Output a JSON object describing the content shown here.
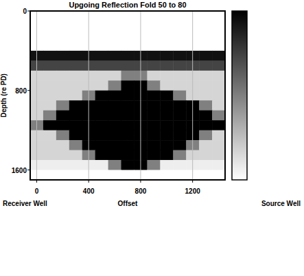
{
  "chart_data": {
    "type": "heatmap",
    "title": "Upgoing Reflection Fold 50 to 80",
    "xlabel": "Offset",
    "ylabel": "Depth (re PD)",
    "annotations": [
      "Receiver Well",
      "Source Well"
    ],
    "x": [
      0,
      100,
      200,
      300,
      400,
      500,
      600,
      700,
      800,
      900,
      1000,
      1100,
      1200,
      1300,
      1400
    ],
    "y": [
      50,
      150,
      250,
      350,
      450,
      550,
      650,
      750,
      850,
      950,
      1050,
      1150,
      1250,
      1350,
      1450,
      1550,
      1650
    ],
    "xlim": [
      -50,
      1450
    ],
    "ylim": [
      0,
      1700
    ],
    "xticks": [
      0,
      400,
      800,
      1200
    ],
    "yticks": [
      0,
      800,
      1600
    ],
    "grid": true,
    "colorbar": {
      "range": [
        50,
        80
      ]
    },
    "z": [
      [
        50,
        50,
        50,
        50,
        50,
        50,
        50,
        50,
        50,
        50,
        50,
        50,
        50,
        50,
        50
      ],
      [
        50,
        50,
        50,
        50,
        50,
        50,
        50,
        50,
        50,
        50,
        50,
        50,
        50,
        50,
        50
      ],
      [
        50,
        50,
        50,
        50,
        50,
        50,
        50,
        50,
        50,
        50,
        50,
        50,
        50,
        50,
        50
      ],
      [
        50,
        50,
        50,
        50,
        50,
        50,
        50,
        50,
        50,
        50,
        50,
        50,
        50,
        50,
        50
      ],
      [
        78,
        78,
        78,
        78,
        78,
        78,
        78,
        78,
        78,
        78,
        78,
        78,
        78,
        78,
        78
      ],
      [
        72,
        72,
        72,
        72,
        72,
        72,
        72,
        72,
        72,
        72,
        72,
        72,
        72,
        72,
        72
      ],
      [
        55,
        55,
        55,
        55,
        55,
        55,
        55,
        65,
        65,
        55,
        55,
        55,
        55,
        55,
        55
      ],
      [
        55,
        55,
        55,
        55,
        55,
        55,
        65,
        80,
        80,
        65,
        55,
        55,
        55,
        55,
        55
      ],
      [
        55,
        55,
        55,
        55,
        65,
        80,
        80,
        80,
        80,
        80,
        80,
        65,
        55,
        55,
        55
      ],
      [
        55,
        55,
        65,
        80,
        80,
        80,
        80,
        80,
        80,
        80,
        80,
        80,
        80,
        65,
        55
      ],
      [
        55,
        65,
        80,
        80,
        80,
        80,
        80,
        80,
        80,
        80,
        80,
        80,
        80,
        80,
        65
      ],
      [
        65,
        80,
        80,
        80,
        80,
        80,
        80,
        80,
        80,
        80,
        80,
        80,
        80,
        80,
        80
      ],
      [
        55,
        55,
        65,
        80,
        80,
        80,
        80,
        80,
        80,
        80,
        80,
        80,
        80,
        65,
        55
      ],
      [
        55,
        55,
        55,
        65,
        80,
        80,
        80,
        80,
        80,
        80,
        80,
        80,
        65,
        55,
        55
      ],
      [
        55,
        55,
        55,
        55,
        65,
        80,
        80,
        80,
        80,
        80,
        80,
        65,
        55,
        55,
        55
      ],
      [
        52,
        52,
        52,
        52,
        52,
        52,
        65,
        80,
        80,
        65,
        52,
        52,
        52,
        52,
        52
      ],
      [
        50,
        50,
        50,
        50,
        50,
        50,
        50,
        50,
        50,
        50,
        50,
        50,
        50,
        50,
        50
      ]
    ]
  }
}
